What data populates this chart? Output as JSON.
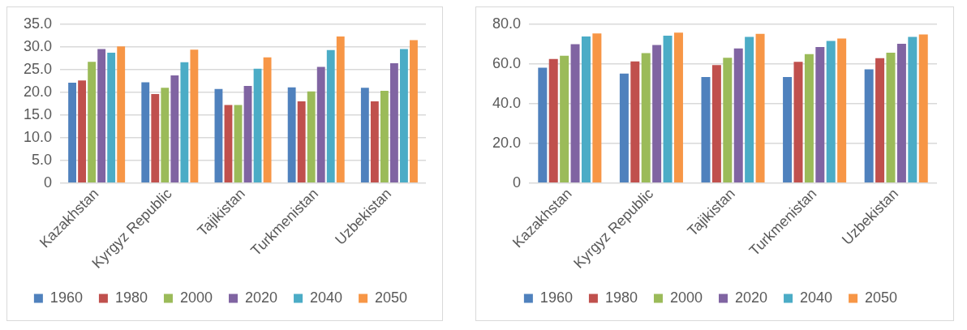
{
  "chart_data": [
    {
      "type": "bar",
      "categories": [
        "Kazakhstan",
        "Kyrgyz Republic",
        "Tajikistan",
        "Turkmenistan",
        "Uzbekistan"
      ],
      "series": [
        {
          "name": "1960",
          "color": "#4f81bd",
          "values": [
            22.1,
            22.2,
            20.7,
            21.1,
            21.0
          ]
        },
        {
          "name": "1980",
          "color": "#c0504d",
          "values": [
            22.6,
            19.6,
            17.2,
            18.0,
            18.0
          ]
        },
        {
          "name": "2000",
          "color": "#9bbb59",
          "values": [
            26.7,
            21.0,
            17.2,
            20.2,
            20.3
          ]
        },
        {
          "name": "2020",
          "color": "#8064a2",
          "values": [
            29.5,
            23.7,
            21.4,
            25.6,
            26.4
          ]
        },
        {
          "name": "2040",
          "color": "#4bacc6",
          "values": [
            28.7,
            26.6,
            25.2,
            29.3,
            29.5
          ]
        },
        {
          "name": "2050",
          "color": "#f79646",
          "values": [
            30.1,
            29.4,
            27.7,
            32.3,
            31.5
          ]
        }
      ],
      "ylim": [
        0,
        35
      ],
      "yticks": [
        0,
        {
          "value": 5,
          "label": "5.0"
        },
        {
          "value": 10,
          "label": "10.0"
        },
        {
          "value": 15,
          "label": "15.0"
        },
        {
          "value": 20,
          "label": "20.0"
        },
        {
          "value": 25,
          "label": "25.0"
        },
        {
          "value": 30,
          "label": "30.0"
        },
        {
          "value": 35,
          "label": "35.0"
        }
      ],
      "grid": "y",
      "legend": "bottom"
    },
    {
      "type": "bar",
      "categories": [
        "Kazakhstan",
        "Kyrgyz Republic",
        "Tajikistan",
        "Turkmenistan",
        "Uzbekistan"
      ],
      "series": [
        {
          "name": "1960",
          "color": "#4f81bd",
          "values": [
            58.1,
            55.1,
            53.4,
            53.4,
            57.3
          ]
        },
        {
          "name": "1980",
          "color": "#c0504d",
          "values": [
            62.5,
            61.2,
            59.4,
            61.0,
            62.9
          ]
        },
        {
          "name": "2000",
          "color": "#9bbb59",
          "values": [
            64.1,
            65.4,
            63.1,
            64.9,
            65.6
          ]
        },
        {
          "name": "2020",
          "color": "#8064a2",
          "values": [
            69.9,
            69.5,
            67.8,
            68.5,
            70.1
          ]
        },
        {
          "name": "2040",
          "color": "#4bacc6",
          "values": [
            73.8,
            74.2,
            73.6,
            71.5,
            73.6
          ]
        },
        {
          "name": "2050",
          "color": "#f79646",
          "values": [
            75.3,
            75.7,
            75.1,
            72.8,
            74.8
          ]
        }
      ],
      "ylim": [
        0,
        80
      ],
      "yticks": [
        0,
        {
          "value": 20,
          "label": "20.0"
        },
        {
          "value": 40,
          "label": "40.0"
        },
        {
          "value": 60,
          "label": "60.0"
        },
        {
          "value": 80,
          "label": "80.0"
        }
      ],
      "grid": "y",
      "legend": "bottom"
    }
  ]
}
